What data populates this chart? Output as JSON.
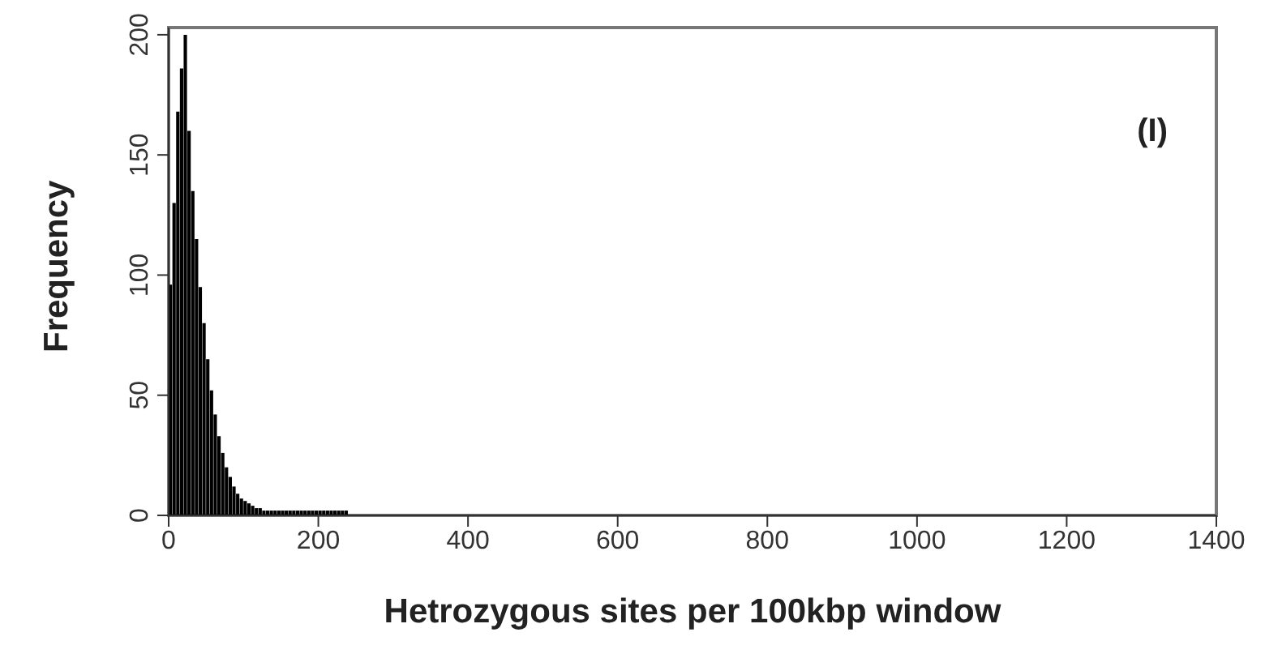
{
  "chart_data": {
    "type": "histogram",
    "xlabel": "Hetrozygous sites per 100kbp window",
    "ylabel": "Frequency",
    "annotations": [
      "(I)"
    ],
    "bins": [
      0,
      5,
      10,
      15,
      20,
      25,
      30,
      35,
      40,
      45,
      50,
      55,
      60,
      65,
      70,
      75,
      80,
      85,
      90,
      95,
      100,
      105,
      110,
      115,
      120,
      125,
      130,
      135,
      140,
      145,
      150,
      155,
      160,
      165,
      170,
      175,
      180,
      185,
      190,
      195,
      200,
      205,
      210,
      215,
      220,
      225,
      230,
      235,
      240
    ],
    "values": [
      96,
      130,
      168,
      186,
      200,
      160,
      135,
      115,
      95,
      80,
      65,
      52,
      42,
      33,
      26,
      20,
      16,
      12,
      9,
      7,
      6,
      5,
      4,
      3,
      3,
      2,
      2,
      2,
      2,
      2,
      2,
      2,
      2,
      2,
      2,
      2,
      2,
      2,
      2,
      2,
      2,
      2,
      2,
      2,
      2,
      2,
      2,
      2
    ],
    "color": "#000000",
    "xlim": [
      0,
      1400
    ],
    "xticks": [
      0,
      200,
      400,
      600,
      800,
      1000,
      1200,
      1400
    ],
    "ylim": [
      0,
      203
    ],
    "yticks": [
      0,
      50,
      100,
      150,
      200
    ],
    "grid": false
  }
}
